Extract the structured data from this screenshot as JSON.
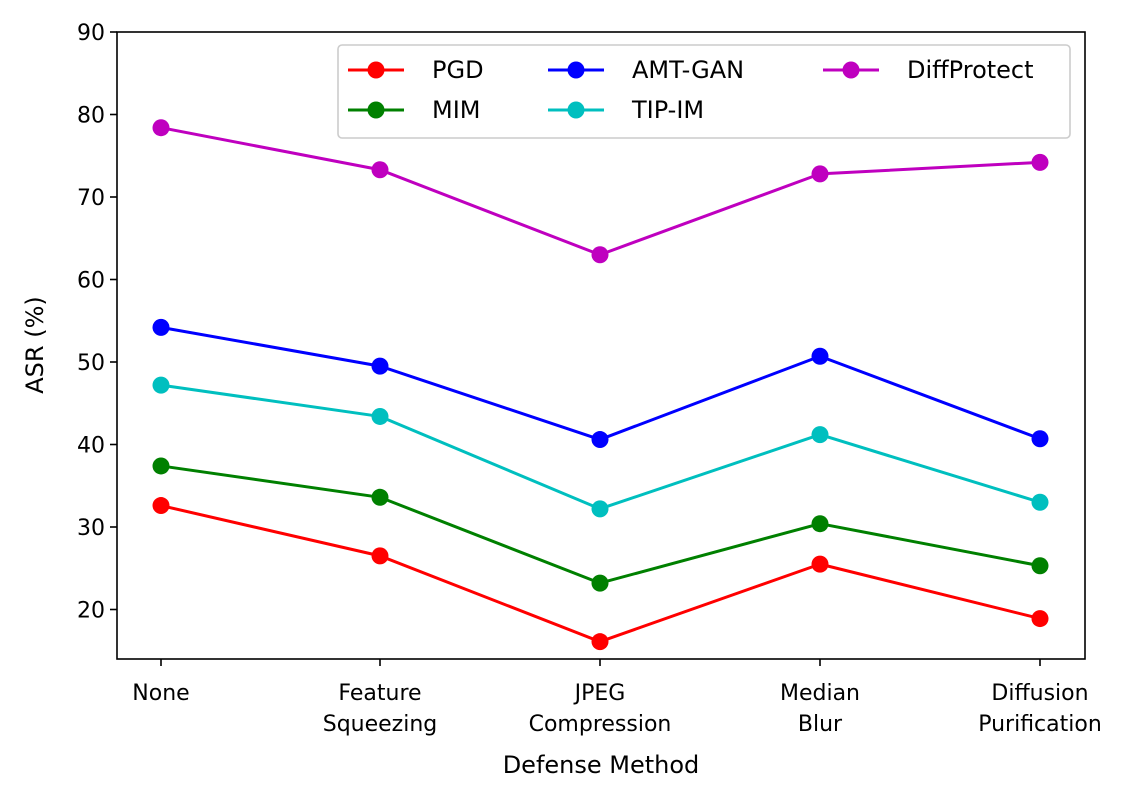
{
  "chart_data": {
    "type": "line",
    "categories": [
      [
        "None"
      ],
      [
        "Feature",
        "Squeezing"
      ],
      [
        "JPEG",
        "Compression"
      ],
      [
        "Median",
        "Blur"
      ],
      [
        "Diffusion",
        "Purification"
      ]
    ],
    "xlabel": "Defense Method",
    "ylabel": "ASR (%)",
    "ylim": [
      14,
      90
    ],
    "yticks": [
      20,
      30,
      40,
      50,
      60,
      70,
      80,
      90
    ],
    "grid": false,
    "legend": {
      "placement": "top-right",
      "columns": 3
    },
    "series": [
      {
        "name": "PGD",
        "color": "#ff0000",
        "values": [
          32.6,
          26.5,
          16.1,
          25.5,
          18.9
        ]
      },
      {
        "name": "MIM",
        "color": "#008000",
        "values": [
          37.4,
          33.6,
          23.2,
          30.4,
          25.3
        ]
      },
      {
        "name": "AMT-GAN",
        "color": "#0000ff",
        "values": [
          54.2,
          49.5,
          40.6,
          50.7,
          40.7
        ]
      },
      {
        "name": "TIP-IM",
        "color": "#00bfbf",
        "values": [
          47.2,
          43.4,
          32.2,
          41.2,
          33.0
        ]
      },
      {
        "name": "DiffProtect",
        "color": "#bf00bf",
        "values": [
          78.4,
          73.3,
          63.0,
          72.8,
          74.2
        ]
      }
    ]
  }
}
